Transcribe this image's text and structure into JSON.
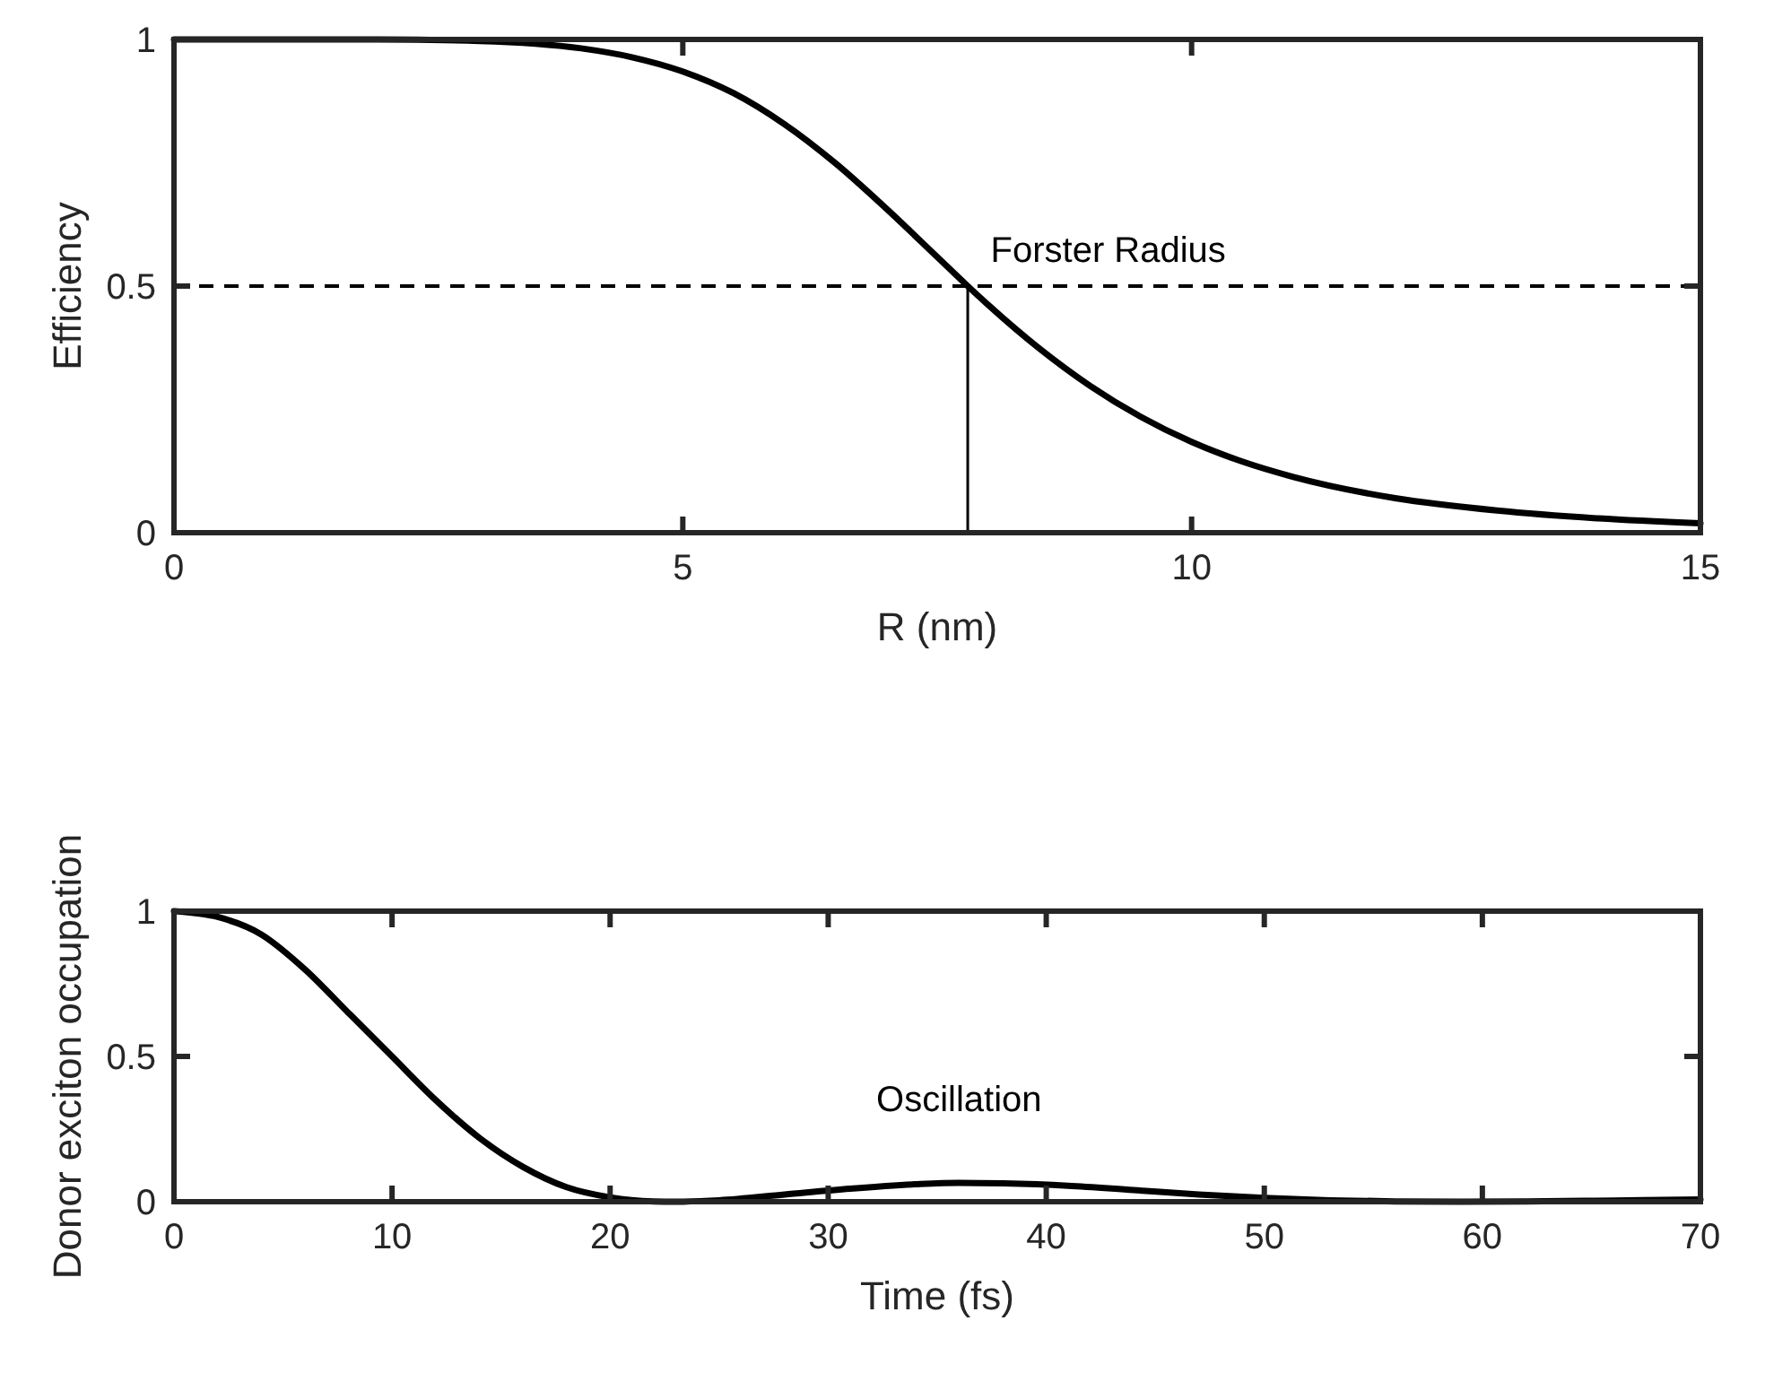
{
  "chart_data": [
    {
      "type": "line",
      "xlabel": "R (nm)",
      "ylabel": "Efficiency",
      "xlim": [
        0,
        15
      ],
      "ylim": [
        0,
        1
      ],
      "xticks": [
        0,
        5,
        10,
        15
      ],
      "yticks": [
        0,
        0.5,
        1
      ],
      "grid": false,
      "line_style": "solid",
      "series": [
        {
          "color": "#000000",
          "x": [
            0,
            1,
            2,
            3,
            4,
            4.5,
            5,
            5.5,
            6,
            6.5,
            7,
            7.5,
            7.8,
            8,
            8.5,
            9,
            9.5,
            10,
            10.5,
            11,
            12,
            13,
            14,
            15
          ],
          "values": [
            1,
            1,
            1,
            0.997,
            0.982,
            0.964,
            0.935,
            0.891,
            0.828,
            0.749,
            0.657,
            0.559,
            0.5,
            0.462,
            0.374,
            0.298,
            0.235,
            0.184,
            0.144,
            0.113,
            0.07,
            0.045,
            0.029,
            0.019
          ]
        },
        {
          "color": "#000000",
          "x": [
            7.8,
            7.8
          ],
          "values": [
            0,
            0.5
          ]
        }
      ],
      "ref_lines": [
        {
          "axis": "y",
          "value": 0.5,
          "line_style": "dashed",
          "color": "#000000"
        }
      ],
      "annotations": [
        "Forster Radius"
      ]
    },
    {
      "type": "line",
      "xlabel": "Time (fs)",
      "ylabel": "Donor exciton occupation",
      "xlim": [
        0,
        70
      ],
      "ylim": [
        0,
        1
      ],
      "xticks": [
        0,
        10,
        20,
        30,
        40,
        50,
        60,
        70
      ],
      "yticks": [
        0,
        0.5,
        1
      ],
      "grid": false,
      "line_style": "solid",
      "series": [
        {
          "color": "#000000",
          "x": [
            0,
            2,
            4,
            6,
            8,
            10,
            12,
            14,
            16,
            18,
            20,
            22,
            23,
            25,
            28,
            31,
            34,
            36,
            38,
            41,
            44,
            47,
            50,
            53,
            56,
            59,
            62,
            66,
            70
          ],
          "values": [
            1,
            0.98,
            0.92,
            0.8,
            0.65,
            0.5,
            0.35,
            0.22,
            0.12,
            0.05,
            0.015,
            0.001,
            0,
            0.005,
            0.025,
            0.045,
            0.06,
            0.065,
            0.063,
            0.055,
            0.04,
            0.025,
            0.013,
            0.005,
            0.001,
            0,
            0.001,
            0.004,
            0.008
          ]
        }
      ],
      "annotations": [
        {
          "text": "Oscillation",
          "x": 36,
          "y": 0.065
        }
      ]
    }
  ]
}
